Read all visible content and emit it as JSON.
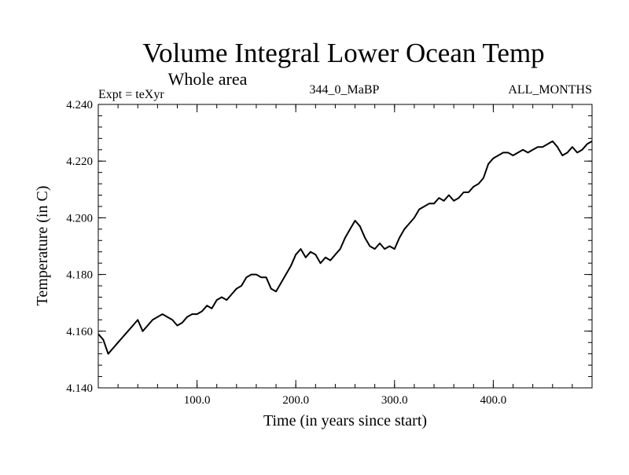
{
  "chart_data": {
    "type": "line",
    "title": "Volume Integral Lower Ocean Temp",
    "subtitle": "Whole area",
    "annotations": {
      "left": "Expt = teXyr",
      "center": "344_0_MaBP",
      "right": "ALL_MONTHS"
    },
    "xlabel": "Time (in years since start)",
    "ylabel": "Temperature (in C)",
    "xlim": [
      0,
      500
    ],
    "ylim": [
      4.14,
      4.24
    ],
    "x_ticks": [
      100,
      200,
      300,
      400
    ],
    "x_tick_labels": [
      "100.0",
      "200.0",
      "300.0",
      "400.0"
    ],
    "y_ticks": [
      4.14,
      4.16,
      4.18,
      4.2,
      4.22,
      4.24
    ],
    "y_tick_labels": [
      "4.140",
      "4.160",
      "4.180",
      "4.200",
      "4.220",
      "4.240"
    ],
    "grid": false,
    "series": [
      {
        "color": "#000000",
        "x": [
          0,
          5,
          10,
          15,
          20,
          25,
          30,
          35,
          40,
          45,
          50,
          55,
          60,
          65,
          70,
          75,
          80,
          85,
          90,
          95,
          100,
          105,
          110,
          115,
          120,
          125,
          130,
          135,
          140,
          145,
          150,
          155,
          160,
          165,
          170,
          175,
          180,
          185,
          190,
          195,
          200,
          205,
          210,
          215,
          220,
          225,
          230,
          235,
          240,
          245,
          250,
          255,
          260,
          265,
          270,
          275,
          280,
          285,
          290,
          295,
          300,
          305,
          310,
          315,
          320,
          325,
          330,
          335,
          340,
          345,
          350,
          355,
          360,
          365,
          370,
          375,
          380,
          385,
          390,
          395,
          400,
          405,
          410,
          415,
          420,
          425,
          430,
          435,
          440,
          445,
          450,
          455,
          460,
          465,
          470,
          475,
          480,
          485,
          490,
          495,
          500
        ],
        "y": [
          4.159,
          4.157,
          4.152,
          4.154,
          4.156,
          4.158,
          4.16,
          4.162,
          4.164,
          4.16,
          4.162,
          4.164,
          4.165,
          4.166,
          4.165,
          4.164,
          4.162,
          4.163,
          4.165,
          4.166,
          4.166,
          4.167,
          4.169,
          4.168,
          4.171,
          4.172,
          4.171,
          4.173,
          4.175,
          4.176,
          4.179,
          4.18,
          4.18,
          4.179,
          4.179,
          4.175,
          4.174,
          4.177,
          4.18,
          4.183,
          4.187,
          4.189,
          4.186,
          4.188,
          4.187,
          4.184,
          4.186,
          4.185,
          4.187,
          4.189,
          4.193,
          4.196,
          4.199,
          4.197,
          4.193,
          4.19,
          4.189,
          4.191,
          4.189,
          4.19,
          4.189,
          4.193,
          4.196,
          4.198,
          4.2,
          4.203,
          4.204,
          4.205,
          4.205,
          4.207,
          4.206,
          4.208,
          4.206,
          4.207,
          4.209,
          4.209,
          4.211,
          4.212,
          4.214,
          4.219,
          4.221,
          4.222,
          4.223,
          4.223,
          4.222,
          4.223,
          4.224,
          4.223,
          4.224,
          4.225,
          4.225,
          4.226,
          4.227,
          4.225,
          4.222,
          4.223,
          4.225,
          4.223,
          4.224,
          4.226,
          4.227
        ]
      }
    ]
  }
}
